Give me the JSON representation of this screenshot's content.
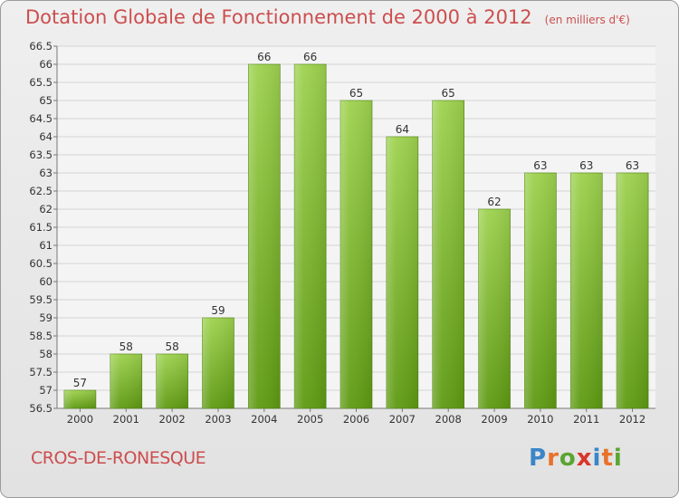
{
  "header": {
    "title": "Dotation Globale de Fonctionnement de 2000 à 2012",
    "units": "(en milliers d'€)"
  },
  "footer": {
    "commune": "CROS-DE-RONESQUE",
    "brand": "Proxiti",
    "brand_letters": [
      "P",
      "r",
      "o",
      "x",
      "i",
      "t",
      "i"
    ],
    "brand_colors": [
      "#3a86c8",
      "#e8722a",
      "#5aa532",
      "#d9352a",
      "#3a86c8",
      "#e8722a",
      "#5aa532"
    ]
  },
  "chart_data": {
    "type": "bar",
    "categories": [
      "2000",
      "2001",
      "2002",
      "2003",
      "2004",
      "2005",
      "2006",
      "2007",
      "2008",
      "2009",
      "2010",
      "2011",
      "2012"
    ],
    "values": [
      57,
      58,
      58,
      59,
      66,
      66,
      65,
      64,
      65,
      62,
      63,
      63,
      63
    ],
    "data_labels": [
      "57",
      "58",
      "58",
      "59",
      "66",
      "66",
      "65",
      "64",
      "65",
      "62",
      "63",
      "63",
      "63"
    ],
    "ylim": [
      56.5,
      66.5
    ],
    "yticks": [
      "56.5",
      "57",
      "57.5",
      "58",
      "58.5",
      "59",
      "59.5",
      "60",
      "60.5",
      "61",
      "61.5",
      "62",
      "62.5",
      "63",
      "63.5",
      "64",
      "64.5",
      "65",
      "65.5",
      "66",
      "66.5"
    ],
    "grid": true,
    "colors": {
      "bar_top": "#9ed24f",
      "bar_bottom": "#5e9a12",
      "title": "#cc4e4e",
      "grid": "#d4d4d4"
    }
  }
}
